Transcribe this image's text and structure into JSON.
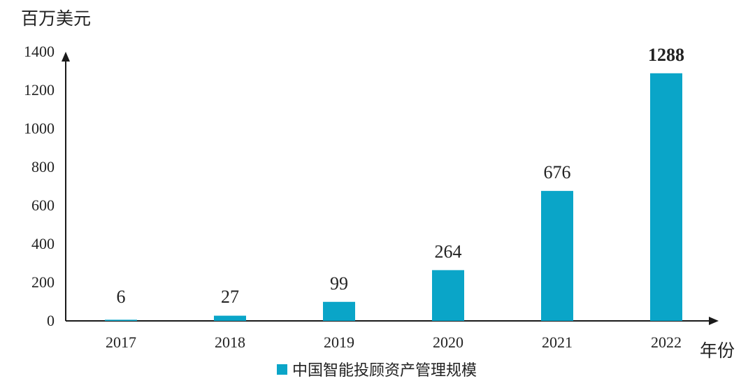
{
  "chart_data": {
    "type": "bar",
    "title": "",
    "ylabel": "百万美元",
    "xlabel": "年份",
    "categories": [
      "2017",
      "2018",
      "2019",
      "2020",
      "2021",
      "2022"
    ],
    "series": [
      {
        "name": "中国智能投顾资产管理规模",
        "values": [
          6,
          27,
          99,
          264,
          676,
          1288
        ],
        "labels": [
          "6",
          "27",
          "99",
          "264",
          "676",
          "1288"
        ]
      }
    ],
    "ylim": [
      0,
      1400
    ],
    "yticks": [
      0,
      200,
      400,
      600,
      800,
      1000,
      1200,
      1400
    ],
    "ytick_labels": [
      "0",
      "200",
      "400",
      "600",
      "800",
      "1000",
      "1200",
      "1400"
    ],
    "legend_position": "bottom-center",
    "grid": false,
    "colors": {
      "bar": "#0AA5C8",
      "highlight_label": "#115E6E",
      "axis": "#1a1a1a",
      "text": "#222222"
    }
  }
}
